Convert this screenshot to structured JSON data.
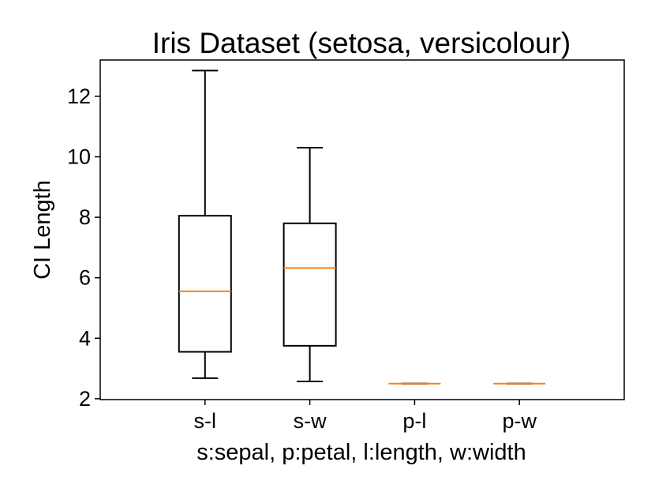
{
  "chart_data": {
    "type": "boxplot",
    "title": "Iris Dataset (setosa, versicolour)",
    "xlabel": "s:sepal, p:petal, l:length, w:width",
    "ylabel": "CI Length",
    "categories": [
      "s-l",
      "s-w",
      "p-l",
      "p-w"
    ],
    "ylim": [
      1.97,
      13.2
    ],
    "yticks": [
      2,
      4,
      6,
      8,
      10,
      12
    ],
    "boxes": [
      {
        "label": "s-l",
        "whisker_low": 2.68,
        "q1": 3.55,
        "median": 5.55,
        "q3": 8.05,
        "whisker_high": 12.85
      },
      {
        "label": "s-w",
        "whisker_low": 2.57,
        "q1": 3.75,
        "median": 6.32,
        "q3": 7.8,
        "whisker_high": 10.3
      },
      {
        "label": "p-l",
        "whisker_low": 2.5,
        "q1": 2.5,
        "median": 2.5,
        "q3": 2.5,
        "whisker_high": 2.5
      },
      {
        "label": "p-w",
        "whisker_low": 2.5,
        "q1": 2.5,
        "median": 2.5,
        "q3": 2.5,
        "whisker_high": 2.5
      }
    ],
    "grid": false,
    "legend": "none",
    "colors": {
      "box": "#000000",
      "median": "#ff7f0e"
    }
  }
}
